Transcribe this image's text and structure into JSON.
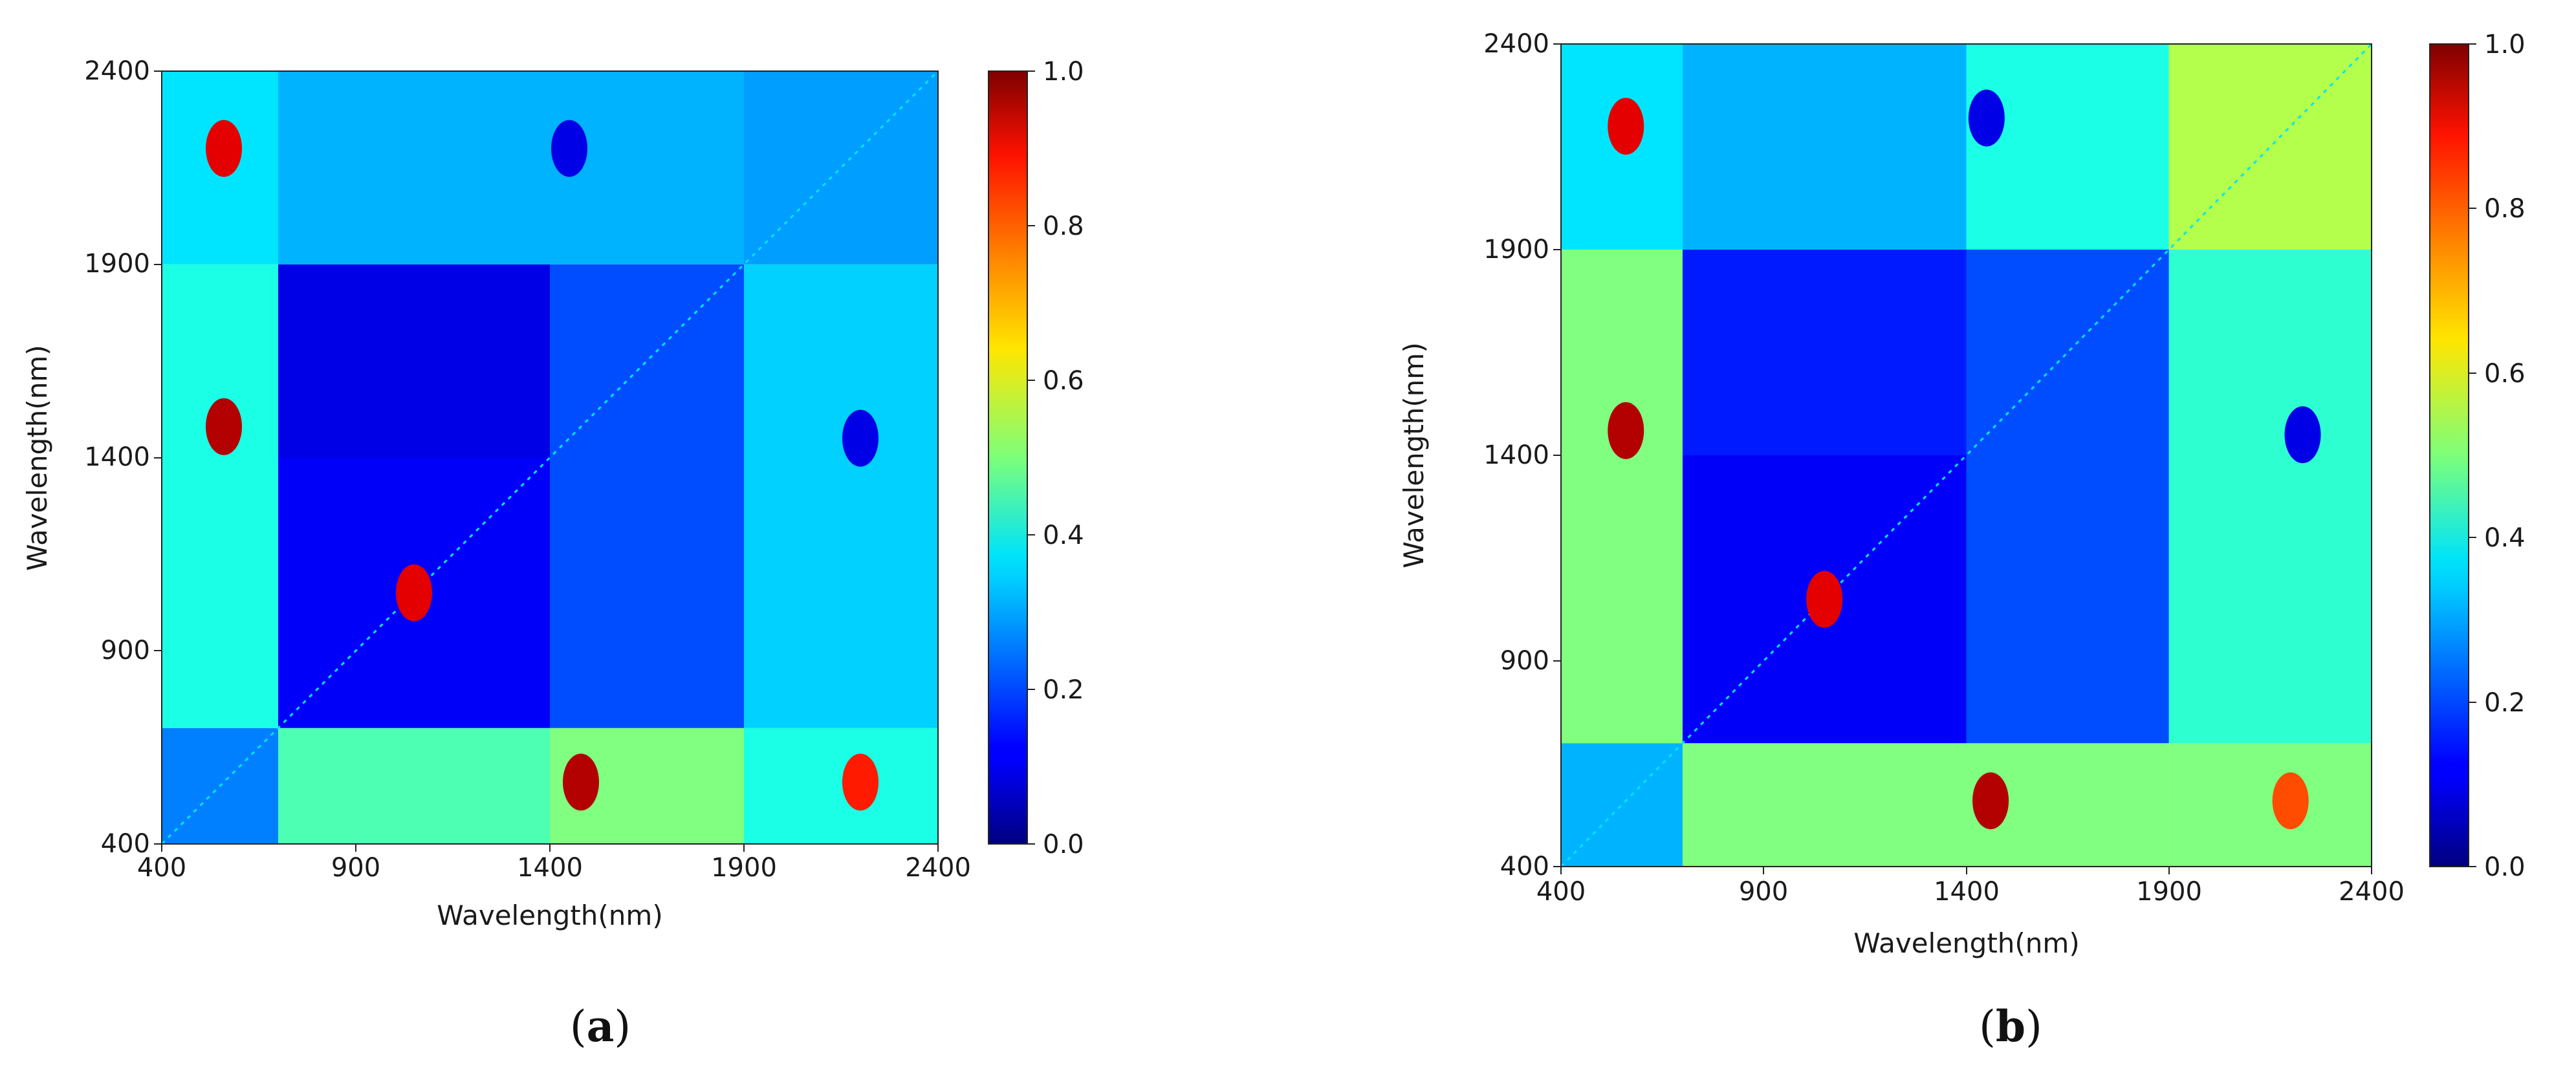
{
  "chart_data": [
    {
      "type": "heatmap",
      "panel_label": "a",
      "xlabel": "Wavelength(nm)",
      "ylabel": "Wavelength(nm)",
      "xlim": [
        400,
        2400
      ],
      "ylim": [
        400,
        2400
      ],
      "xticks": [
        "400",
        "900",
        "1400",
        "1900",
        "2400"
      ],
      "yticks": [
        "400",
        "900",
        "1400",
        "1900",
        "2400"
      ],
      "colorbar": {
        "min": 0.0,
        "max": 1.0,
        "ticks": [
          "0.0",
          "0.2",
          "0.4",
          "0.6",
          "0.8",
          "1.0"
        ],
        "colormap": "jet"
      },
      "regions": [
        {
          "x": [
            400,
            700
          ],
          "y": [
            400,
            700
          ],
          "value": 0.25
        },
        {
          "x": [
            400,
            700
          ],
          "y": [
            700,
            1900
          ],
          "value": 0.4
        },
        {
          "x": [
            400,
            700
          ],
          "y": [
            1900,
            2400
          ],
          "value": 0.35
        },
        {
          "x": [
            700,
            1400
          ],
          "y": [
            400,
            700
          ],
          "value": 0.45
        },
        {
          "x": [
            1400,
            1900
          ],
          "y": [
            400,
            700
          ],
          "value": 0.5
        },
        {
          "x": [
            1900,
            2400
          ],
          "y": [
            400,
            700
          ],
          "value": 0.4
        },
        {
          "x": [
            700,
            1400
          ],
          "y": [
            700,
            1400
          ],
          "value": 0.12
        },
        {
          "x": [
            1400,
            1900
          ],
          "y": [
            700,
            1400
          ],
          "value": 0.2
        },
        {
          "x": [
            1900,
            2400
          ],
          "y": [
            700,
            1400
          ],
          "value": 0.33
        },
        {
          "x": [
            700,
            1400
          ],
          "y": [
            1400,
            1900
          ],
          "value": 0.1
        },
        {
          "x": [
            1400,
            1900
          ],
          "y": [
            1400,
            1900
          ],
          "value": 0.2
        },
        {
          "x": [
            1900,
            2400
          ],
          "y": [
            1400,
            1900
          ],
          "value": 0.33
        },
        {
          "x": [
            700,
            1400
          ],
          "y": [
            1900,
            2400
          ],
          "value": 0.3
        },
        {
          "x": [
            1400,
            1900
          ],
          "y": [
            1900,
            2400
          ],
          "value": 0.3
        },
        {
          "x": [
            1900,
            2400
          ],
          "y": [
            1900,
            2400
          ],
          "value": 0.28
        }
      ],
      "features": [
        {
          "x": 560,
          "y": 1480,
          "value": 0.95
        },
        {
          "x": 560,
          "y": 2200,
          "value": 0.9
        },
        {
          "x": 1480,
          "y": 560,
          "value": 0.95
        },
        {
          "x": 2200,
          "y": 560,
          "value": 0.85
        },
        {
          "x": 1450,
          "y": 2200,
          "value": 0.1
        },
        {
          "x": 2200,
          "y": 1450,
          "value": 0.1
        },
        {
          "x": 1050,
          "y": 1050,
          "value": 0.9
        }
      ]
    },
    {
      "type": "heatmap",
      "panel_label": "b",
      "xlabel": "Wavelength(nm)",
      "ylabel": "Wavelength(nm)",
      "xlim": [
        400,
        2400
      ],
      "ylim": [
        400,
        2400
      ],
      "xticks": [
        "400",
        "900",
        "1400",
        "1900",
        "2400"
      ],
      "yticks": [
        "400",
        "900",
        "1400",
        "1900",
        "2400"
      ],
      "colorbar": {
        "min": 0.0,
        "max": 1.0,
        "ticks": [
          "0.0",
          "0.2",
          "0.4",
          "0.6",
          "0.8",
          "1.0"
        ],
        "colormap": "jet"
      },
      "regions": [
        {
          "x": [
            400,
            700
          ],
          "y": [
            400,
            700
          ],
          "value": 0.3
        },
        {
          "x": [
            400,
            700
          ],
          "y": [
            700,
            1900
          ],
          "value": 0.5
        },
        {
          "x": [
            400,
            700
          ],
          "y": [
            1900,
            2400
          ],
          "value": 0.35
        },
        {
          "x": [
            700,
            1400
          ],
          "y": [
            400,
            700
          ],
          "value": 0.5
        },
        {
          "x": [
            1400,
            1900
          ],
          "y": [
            400,
            700
          ],
          "value": 0.5
        },
        {
          "x": [
            1900,
            2400
          ],
          "y": [
            400,
            700
          ],
          "value": 0.5
        },
        {
          "x": [
            700,
            1400
          ],
          "y": [
            700,
            1400
          ],
          "value": 0.12
        },
        {
          "x": [
            1400,
            1900
          ],
          "y": [
            700,
            1400
          ],
          "value": 0.2
        },
        {
          "x": [
            1900,
            2400
          ],
          "y": [
            700,
            1400
          ],
          "value": 0.42
        },
        {
          "x": [
            700,
            1400
          ],
          "y": [
            1400,
            1900
          ],
          "value": 0.15
        },
        {
          "x": [
            1400,
            1900
          ],
          "y": [
            1400,
            1900
          ],
          "value": 0.2
        },
        {
          "x": [
            1900,
            2400
          ],
          "y": [
            1400,
            1900
          ],
          "value": 0.42
        },
        {
          "x": [
            700,
            1400
          ],
          "y": [
            1900,
            2400
          ],
          "value": 0.3
        },
        {
          "x": [
            1400,
            1900
          ],
          "y": [
            1900,
            2400
          ],
          "value": 0.4
        },
        {
          "x": [
            1900,
            2400
          ],
          "y": [
            1900,
            2400
          ],
          "value": 0.55
        }
      ],
      "features": [
        {
          "x": 560,
          "y": 1460,
          "value": 0.95
        },
        {
          "x": 560,
          "y": 2200,
          "value": 0.9
        },
        {
          "x": 1460,
          "y": 560,
          "value": 0.95
        },
        {
          "x": 2200,
          "y": 560,
          "value": 0.8
        },
        {
          "x": 1450,
          "y": 2220,
          "value": 0.1
        },
        {
          "x": 2230,
          "y": 1450,
          "value": 0.1
        },
        {
          "x": 1050,
          "y": 1050,
          "value": 0.9
        }
      ]
    }
  ]
}
